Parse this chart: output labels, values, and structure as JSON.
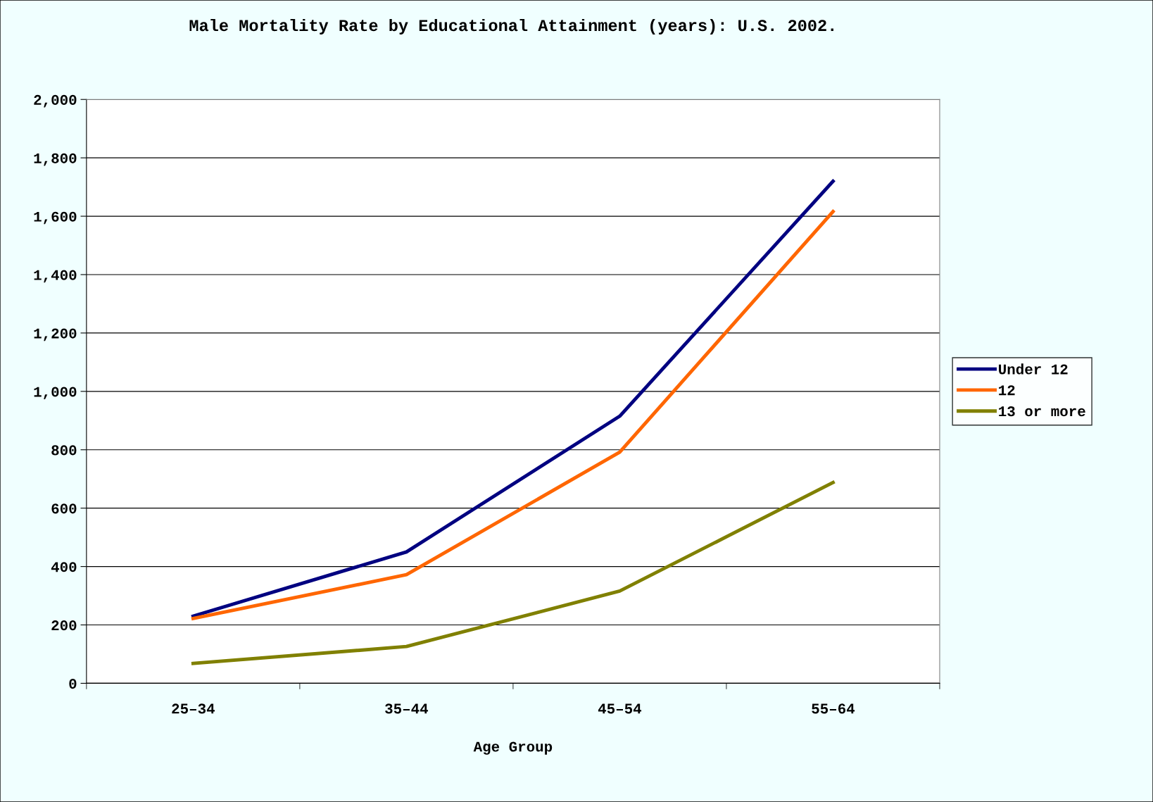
{
  "chart_data": {
    "type": "line",
    "title": "Male Mortality Rate by Educational Attainment (years): U.S. 2002.",
    "xlabel": "Age Group",
    "categories": [
      "25–34",
      "35–44",
      "45–54",
      "55–64"
    ],
    "series": [
      {
        "name": "Under 12",
        "color": "#000080",
        "values": [
          230,
          450,
          915,
          1720
        ]
      },
      {
        "name": "12",
        "color": "#ff6600",
        "values": [
          222,
          372,
          792,
          1616
        ]
      },
      {
        "name": "13 or more",
        "color": "#808000",
        "values": [
          68,
          126,
          316,
          688
        ]
      }
    ],
    "ylim": [
      0,
      2000
    ],
    "yticks": [
      {
        "value": 0,
        "label": "0"
      },
      {
        "value": 200,
        "label": "200"
      },
      {
        "value": 400,
        "label": "400"
      },
      {
        "value": 600,
        "label": "600"
      },
      {
        "value": 800,
        "label": "800"
      },
      {
        "value": 1000,
        "label": "1,000"
      },
      {
        "value": 1200,
        "label": "1,200"
      },
      {
        "value": 1400,
        "label": "1,400"
      },
      {
        "value": 1600,
        "label": "1,600"
      },
      {
        "value": 1800,
        "label": "1,800"
      },
      {
        "value": 2000,
        "label": "2,000"
      }
    ],
    "grid": "y",
    "legend": "right",
    "marker": "none",
    "line_style": "solid"
  }
}
